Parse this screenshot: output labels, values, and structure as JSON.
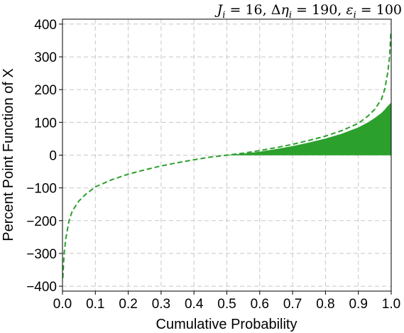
{
  "chart_data": {
    "type": "area",
    "title": "J_i = 16, Δη_i = 190, ε_i = 100",
    "title_parts": {
      "j": "J",
      "j_sub": "i",
      "j_val": " = 16, Δ",
      "eta": "η",
      "eta_sub": "i",
      "eta_val": " = 190, ",
      "eps": "ε",
      "eps_sub": "i",
      "eps_val": " = 100"
    },
    "xlabel": "Cumulative Probability",
    "ylabel": "Percent Point Function of X",
    "xlim": [
      0.0,
      1.0
    ],
    "ylim": [
      -415,
      415
    ],
    "xticks": [
      0.0,
      0.1,
      0.2,
      0.3,
      0.4,
      0.5,
      0.6,
      0.7,
      0.8,
      0.9,
      1.0
    ],
    "xtick_labels": [
      "0.0",
      "0.1",
      "0.2",
      "0.3",
      "0.4",
      "0.5",
      "0.6",
      "0.7",
      "0.8",
      "0.9",
      "1.0"
    ],
    "yticks": [
      -400,
      -300,
      -200,
      -100,
      0,
      100,
      200,
      300,
      400
    ],
    "ytick_labels": [
      "−400",
      "−300",
      "−200",
      "−100",
      "0",
      "100",
      "200",
      "300",
      "400"
    ],
    "grid": true,
    "series": [
      {
        "style": "dashed-line",
        "color": "#2ca02c",
        "x": [
          0.001,
          0.005,
          0.01,
          0.02,
          0.03,
          0.05,
          0.07,
          0.1,
          0.15,
          0.2,
          0.25,
          0.3,
          0.35,
          0.4,
          0.45,
          0.5,
          0.55,
          0.6,
          0.65,
          0.7,
          0.75,
          0.8,
          0.85,
          0.9,
          0.93,
          0.95,
          0.97,
          0.98,
          0.99,
          0.995,
          0.999
        ],
        "y": [
          -375,
          -300,
          -255,
          -200,
          -170,
          -140,
          -120,
          -97,
          -75,
          -58,
          -45,
          -33,
          -23,
          -14,
          -6,
          0,
          6,
          14,
          23,
          33,
          45,
          58,
          75,
          97,
          120,
          140,
          170,
          200,
          255,
          300,
          375
        ]
      },
      {
        "style": "filled-area",
        "color": "#2ca02c",
        "x": [
          0.5,
          0.55,
          0.6,
          0.65,
          0.7,
          0.75,
          0.8,
          0.85,
          0.9,
          0.93,
          0.95,
          0.97,
          0.98,
          0.99,
          1.0
        ],
        "y": [
          0,
          4,
          10,
          18,
          27,
          38,
          50,
          65,
          84,
          100,
          113,
          128,
          138,
          150,
          160
        ]
      }
    ]
  }
}
